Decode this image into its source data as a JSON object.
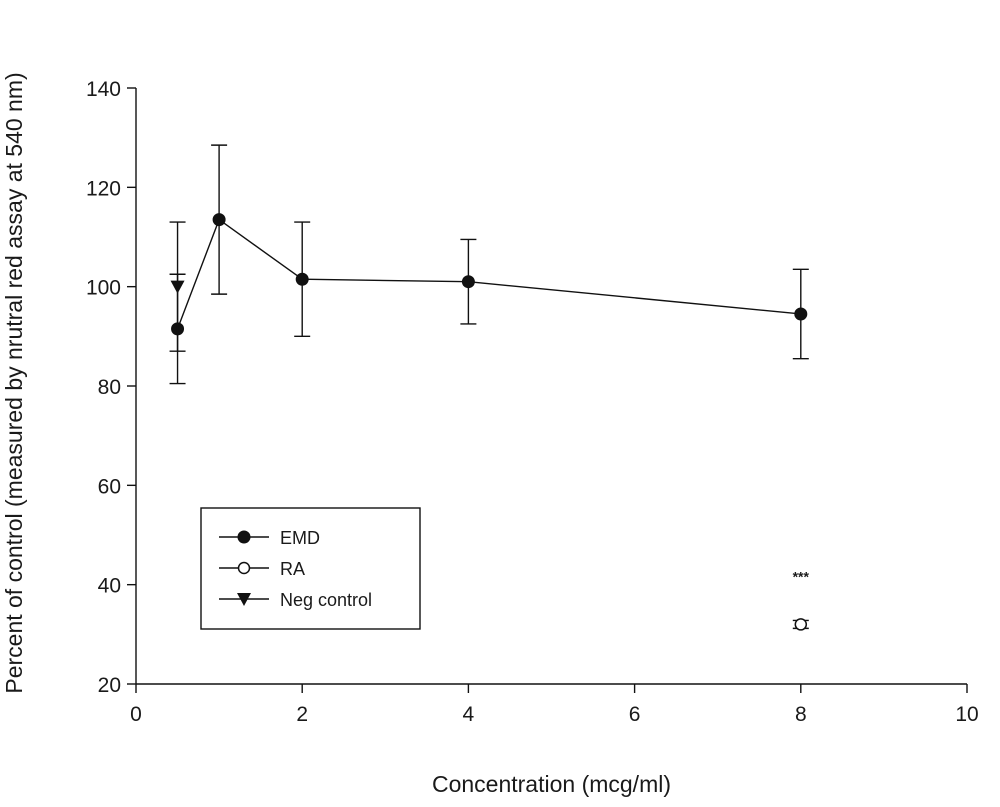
{
  "chart_data": {
    "type": "line",
    "title": "",
    "xlabel": "Concentration (mcg/ml)",
    "ylabel": "Percent of control (measured by nrutral red assay at 540 nm)",
    "xlim": [
      0,
      10
    ],
    "ylim": [
      20,
      140
    ],
    "xticks": [
      0,
      2,
      4,
      6,
      8,
      10
    ],
    "yticks": [
      20,
      40,
      60,
      80,
      100,
      120,
      140
    ],
    "grid": false,
    "legend_position": "bottom-left",
    "series": [
      {
        "name": "EMD",
        "marker": "filled-circle",
        "connected": true,
        "x": [
          0.5,
          1,
          2,
          4,
          8
        ],
        "y": [
          91.5,
          113.5,
          101.5,
          101,
          94.5
        ],
        "error": [
          11,
          15,
          11.5,
          8.5,
          9
        ]
      },
      {
        "name": "RA",
        "marker": "open-circle",
        "connected": false,
        "x": [
          8
        ],
        "y": [
          32
        ],
        "error": [
          0.8
        ]
      },
      {
        "name": "Neg control",
        "marker": "filled-triangle-down",
        "connected": false,
        "x": [
          0.5
        ],
        "y": [
          100
        ],
        "error": [
          13
        ]
      }
    ],
    "annotations": [
      {
        "text": "***",
        "x": 8,
        "y": 41
      }
    ]
  }
}
